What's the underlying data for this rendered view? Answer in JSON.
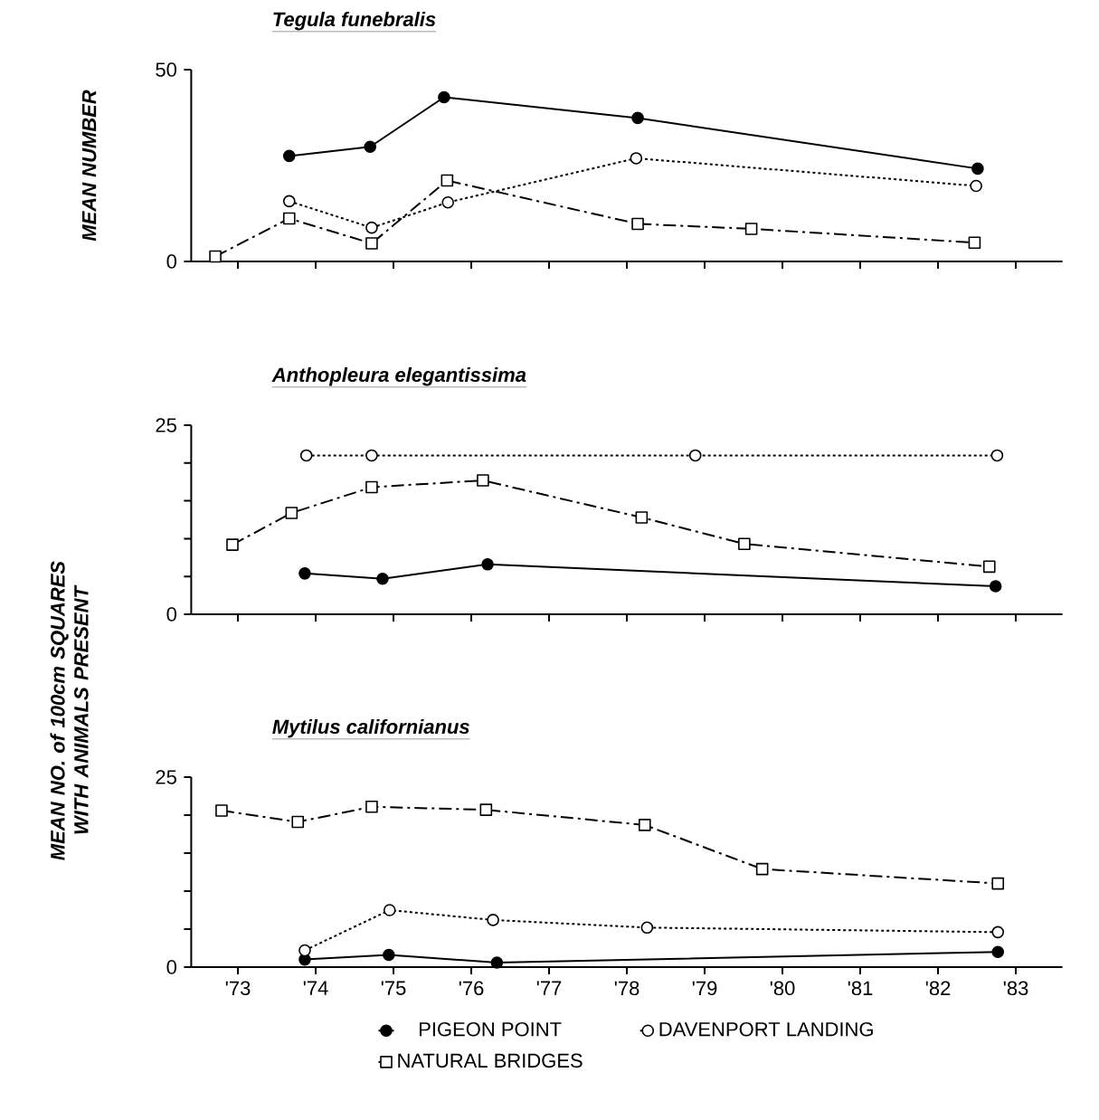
{
  "chart_data": [
    {
      "type": "line",
      "title": "Tegula funebralis",
      "ylabel": "MEAN NUMBER",
      "xlim": [
        72.4,
        83.6
      ],
      "ylim": [
        0,
        50
      ],
      "xticks": [
        {
          "value": 73,
          "label": null
        },
        {
          "value": 74,
          "label": null
        },
        {
          "value": 75,
          "label": null
        },
        {
          "value": 76,
          "label": null
        },
        {
          "value": 77,
          "label": null
        },
        {
          "value": 78,
          "label": null
        },
        {
          "value": 79,
          "label": null
        },
        {
          "value": 80,
          "label": null
        },
        {
          "value": 81,
          "label": null
        },
        {
          "value": 82,
          "label": null
        },
        {
          "value": 83,
          "label": null
        }
      ],
      "yticks": [
        0,
        50
      ],
      "tick_labels": "y",
      "series": [
        {
          "color": "#000000",
          "line_style": "solid",
          "marker": "circle",
          "x": [
            73.66,
            74.7,
            75.65,
            78.14,
            82.51
          ],
          "values": [
            27.5,
            29.9,
            42.8,
            37.4,
            24.2
          ]
        },
        {
          "color": "#000000",
          "line_style": "dashed",
          "marker": "circle",
          "x": [
            73.66,
            74.72,
            75.7,
            78.12,
            82.49
          ],
          "values": [
            15.7,
            8.8,
            15.4,
            26.9,
            19.7
          ]
        },
        {
          "color": "#000000",
          "line_style": "dashdot",
          "marker": "square",
          "x": [
            72.71,
            73.66,
            74.72,
            75.69,
            78.14,
            79.6,
            82.47
          ],
          "values": [
            1.3,
            11.2,
            4.7,
            21.1,
            9.8,
            8.5,
            4.9
          ]
        }
      ]
    },
    {
      "type": "line",
      "title": "Anthopleura elegantissima",
      "ylabel": "MEAN NO. of 100cm SQUARES WITH ANIMALS PRESENT",
      "xlim": [
        72.4,
        83.6
      ],
      "ylim": [
        0,
        25
      ],
      "xticks": [
        {
          "value": 73,
          "label": null
        },
        {
          "value": 74,
          "label": null
        },
        {
          "value": 75,
          "label": null
        },
        {
          "value": 76,
          "label": null
        },
        {
          "value": 77,
          "label": null
        },
        {
          "value": 78,
          "label": null
        },
        {
          "value": 79,
          "label": null
        },
        {
          "value": 80,
          "label": null
        },
        {
          "value": 81,
          "label": null
        },
        {
          "value": 82,
          "label": null
        },
        {
          "value": 83,
          "label": null
        }
      ],
      "yticks": [
        0,
        {
          "value": 5,
          "label": null
        },
        {
          "value": 10,
          "label": null
        },
        {
          "value": 15,
          "label": null
        },
        {
          "value": 20,
          "label": null
        },
        25
      ],
      "tick_labels": "y",
      "series": [
        {
          "color": "#000000",
          "line_style": "solid",
          "marker": "circle",
          "x": [
            73.86,
            74.86,
            76.21,
            82.74
          ],
          "values": [
            5.4,
            4.7,
            6.6,
            3.7
          ]
        },
        {
          "color": "#000000",
          "line_style": "dashed",
          "marker": "circle",
          "x": [
            73.88,
            74.72,
            78.88,
            82.76
          ],
          "values": [
            21.0,
            21.0,
            21.0,
            21.0
          ]
        },
        {
          "color": "#000000",
          "line_style": "dashdot",
          "marker": "square",
          "x": [
            72.93,
            73.69,
            74.72,
            76.15,
            78.19,
            79.51,
            82.66
          ],
          "values": [
            9.2,
            13.4,
            16.8,
            17.7,
            12.8,
            9.3,
            6.3
          ]
        }
      ]
    },
    {
      "type": "line",
      "title": "Mytilus californianus",
      "xlim": [
        72.4,
        83.6
      ],
      "ylim": [
        0,
        25
      ],
      "xticks": [
        {
          "value": 73,
          "label": "'73"
        },
        {
          "value": 74,
          "label": "'74"
        },
        {
          "value": 75,
          "label": "'75"
        },
        {
          "value": 76,
          "label": "'76"
        },
        {
          "value": 77,
          "label": "'77"
        },
        {
          "value": 78,
          "label": "'78"
        },
        {
          "value": 79,
          "label": "'79"
        },
        {
          "value": 80,
          "label": "'80"
        },
        {
          "value": 81,
          "label": "'81"
        },
        {
          "value": 82,
          "label": "'82"
        },
        {
          "value": 83,
          "label": "'83"
        }
      ],
      "yticks": [
        0,
        {
          "value": 5,
          "label": null
        },
        {
          "value": 10,
          "label": null
        },
        {
          "value": 15,
          "label": null
        },
        {
          "value": 20,
          "label": null
        },
        25
      ],
      "legend": "bottom",
      "series": [
        {
          "name": "PIGEON POINT",
          "color": "#000000",
          "line_style": "solid",
          "marker": "circle",
          "x": [
            73.86,
            74.94,
            76.33,
            82.77
          ],
          "values": [
            1.0,
            1.6,
            0.6,
            2.0
          ]
        },
        {
          "name": "DAVENPORT LANDING",
          "color": "#000000",
          "line_style": "dashed",
          "marker": "circle",
          "x": [
            73.86,
            74.95,
            76.28,
            78.26,
            82.77
          ],
          "values": [
            2.2,
            7.5,
            6.2,
            5.2,
            4.6
          ]
        },
        {
          "name": "NATURAL BRIDGES",
          "color": "#000000",
          "line_style": "dashdot",
          "marker": "square",
          "x": [
            72.79,
            73.77,
            74.72,
            76.19,
            78.23,
            79.74,
            82.77
          ],
          "values": [
            20.6,
            19.1,
            21.1,
            20.7,
            18.7,
            12.9,
            11.0
          ]
        }
      ]
    }
  ]
}
